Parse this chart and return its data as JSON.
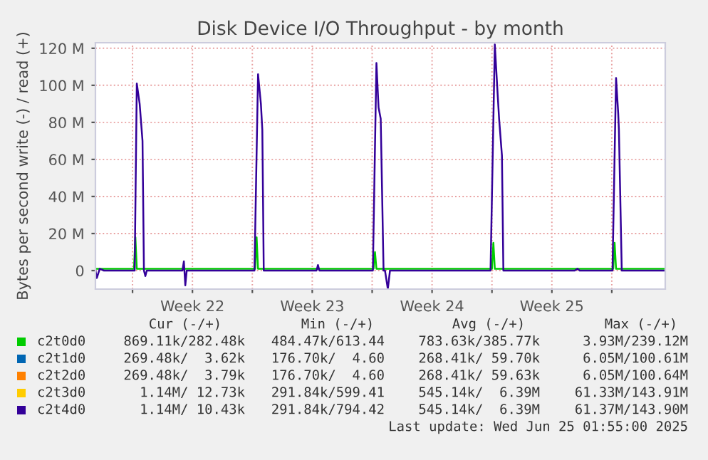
{
  "chart_data": {
    "type": "line",
    "title": "Disk Device I/O Throughput - by month",
    "ylabel": "Bytes per second write (-) / read (+)",
    "xlim": [
      "2025-05-23T20:00",
      "2025-06-26T03:00"
    ],
    "ylim": [
      -10,
      123
    ],
    "xticks": [
      {
        "value": "2025-05-26",
        "label": null
      },
      {
        "value": "2025-05-29T12:00",
        "label": "Week 22"
      },
      {
        "value": "2025-06-02",
        "label": null
      },
      {
        "value": "2025-06-05T12:00",
        "label": "Week 23"
      },
      {
        "value": "2025-06-09",
        "label": null
      },
      {
        "value": "2025-06-12T12:00",
        "label": "Week 24"
      },
      {
        "value": "2025-06-16",
        "label": null
      },
      {
        "value": "2025-06-19T12:00",
        "label": "Week 25"
      },
      {
        "value": "2025-06-23",
        "label": null
      }
    ],
    "yticks": [
      {
        "value": 0,
        "label": "0"
      },
      {
        "value": 20,
        "label": "20 M"
      },
      {
        "value": 40,
        "label": "40 M"
      },
      {
        "value": 60,
        "label": "60 M"
      },
      {
        "value": 80,
        "label": "80 M"
      },
      {
        "value": 100,
        "label": "100 M"
      },
      {
        "value": 120,
        "label": "120 M"
      }
    ],
    "grid": true,
    "legend": "bottom",
    "series": [
      {
        "name": "c2t0d0",
        "color": "#00cc00",
        "x": [
          "2025-05-23T20:00",
          "2025-05-26T02:00",
          "2025-05-26T04:00",
          "2025-05-26T06:00",
          "2025-06-02T04:00",
          "2025-06-02T06:00",
          "2025-06-02T08:00",
          "2025-06-09T02:00",
          "2025-06-09T04:00",
          "2025-06-09T06:00",
          "2025-06-16T00:00",
          "2025-06-16T02:00",
          "2025-06-16T04:00",
          "2025-06-23T02:00",
          "2025-06-23T04:00",
          "2025-06-23T06:00",
          "2025-06-26T03:00"
        ],
        "values": [
          1,
          1,
          18,
          1,
          1,
          18,
          1,
          1,
          10,
          1,
          1,
          15,
          1,
          1,
          15,
          1,
          1
        ]
      },
      {
        "name": "c2t1d0",
        "color": "#0066b3"
      },
      {
        "name": "c2t2d0",
        "color": "#ff8000"
      },
      {
        "name": "c2t3d0",
        "color": "#ffcc00"
      },
      {
        "name": "c2t4d0",
        "color": "#330099",
        "x": [
          "2025-05-23T20:00",
          "2025-05-23T22:00",
          "2025-05-24T02:00",
          "2025-05-24T08:00",
          "2025-05-26T03:00",
          "2025-05-26T06:00",
          "2025-05-26T10:00",
          "2025-05-26T14:00",
          "2025-05-26T16:00",
          "2025-05-26T18:00",
          "2025-05-26T20:00",
          "2025-05-28T22:00",
          "2025-05-29T00:00",
          "2025-05-29T02:00",
          "2025-05-29T04:00",
          "2025-06-02T03:00",
          "2025-06-02T08:00",
          "2025-06-02T12:00",
          "2025-06-02T14:00",
          "2025-06-02T16:00",
          "2025-06-05T18:00",
          "2025-06-05T20:00",
          "2025-06-05T22:00",
          "2025-06-09T01:00",
          "2025-06-09T06:00",
          "2025-06-09T09:00",
          "2025-06-09T12:00",
          "2025-06-09T16:00",
          "2025-06-09T18:00",
          "2025-06-09T22:00",
          "2025-06-10T01:00",
          "2025-06-15T22:00",
          "2025-06-16T04:00",
          "2025-06-16T08:00",
          "2025-06-16T10:00",
          "2025-06-16T14:00",
          "2025-06-16T16:00",
          "2025-06-20T20:00",
          "2025-06-21T00:00",
          "2025-06-21T03:00",
          "2025-06-23T01:00",
          "2025-06-23T06:00",
          "2025-06-23T09:00",
          "2025-06-23T10:00",
          "2025-06-23T14:00",
          "2025-06-26T03:00"
        ],
        "values": [
          0,
          -4,
          1,
          0,
          0,
          101,
          90,
          70,
          0,
          -3,
          0,
          0,
          5,
          -8,
          0,
          0,
          106,
          90,
          76,
          0,
          0,
          3,
          0,
          0,
          112,
          88,
          82,
          0,
          0,
          -10,
          0,
          0,
          122,
          95,
          82,
          62,
          0,
          0,
          1,
          0,
          0,
          104,
          85,
          76,
          0,
          0
        ]
      }
    ],
    "annotations": [
      "Cur (-/+)",
      "Min (-/+)",
      "Avg (-/+)",
      "Max (-/+)",
      "869.11k/282.48k",
      "484.47k/613.44",
      "783.63k/385.77k",
      "3.93M/239.12M",
      "269.48k/  3.62k",
      "176.70k/  4.60",
      "268.41k/ 59.70k",
      "6.05M/100.61M",
      "269.48k/  3.79k",
      "176.70k/  4.60",
      "268.41k/ 59.63k",
      "6.05M/100.64M",
      "1.14M/ 12.73k",
      "291.84k/599.41",
      "545.14k/  6.39M",
      "61.33M/143.91M",
      "1.14M/ 10.43k",
      "291.84k/794.42",
      "545.14k/  6.39M",
      "61.37M/143.90M",
      "Last update: Wed Jun 25 01:55:00 2025"
    ]
  }
}
